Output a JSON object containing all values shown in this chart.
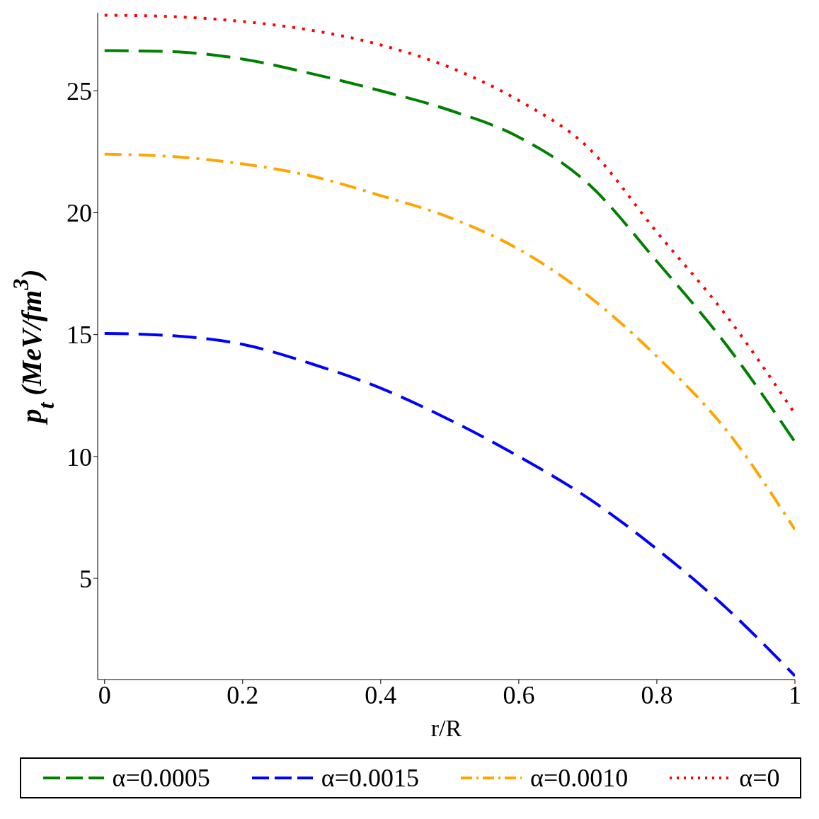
{
  "chart_data": {
    "type": "line",
    "xlabel": "r/R",
    "ylabel": "p$_{t}$ (MeV/fm$^{3}$)",
    "x": [
      0,
      0.1,
      0.2,
      0.3,
      0.4,
      0.5,
      0.6,
      0.7,
      0.8,
      0.9,
      1
    ],
    "series": [
      {
        "name": "α=0.0005",
        "color": "#008000",
        "line_style": "dashed",
        "values": [
          26.65,
          26.6,
          26.3,
          25.7,
          25.0,
          24.2,
          23.1,
          21.2,
          18.0,
          14.6,
          10.6
        ]
      },
      {
        "name": "α=0.0015",
        "color": "#0000ff",
        "line_style": "dashed",
        "values": [
          15.05,
          14.95,
          14.6,
          13.8,
          12.8,
          11.5,
          10.0,
          8.3,
          6.2,
          3.8,
          1.0
        ]
      },
      {
        "name": "α=0.0010",
        "color": "#ffa500",
        "line_style": "dashdot",
        "values": [
          22.4,
          22.3,
          22.0,
          21.5,
          20.7,
          19.8,
          18.5,
          16.6,
          14.1,
          11.1,
          7.0
        ]
      },
      {
        "name": "α=0",
        "color": "#ff0000",
        "line_style": "dotted",
        "values": [
          28.1,
          28.04,
          27.84,
          27.48,
          26.88,
          25.96,
          24.6,
          22.68,
          19.2,
          15.8,
          11.75
        ]
      }
    ],
    "xlim": [
      -0.01,
      1.0
    ],
    "ylim": [
      0.85,
      28.2
    ],
    "xticks": [
      0,
      0.2,
      0.4,
      0.6,
      0.8,
      1
    ],
    "yticks": [
      5,
      10,
      15,
      20,
      25
    ],
    "grid": false,
    "legend": "bottom",
    "marker": "none"
  }
}
